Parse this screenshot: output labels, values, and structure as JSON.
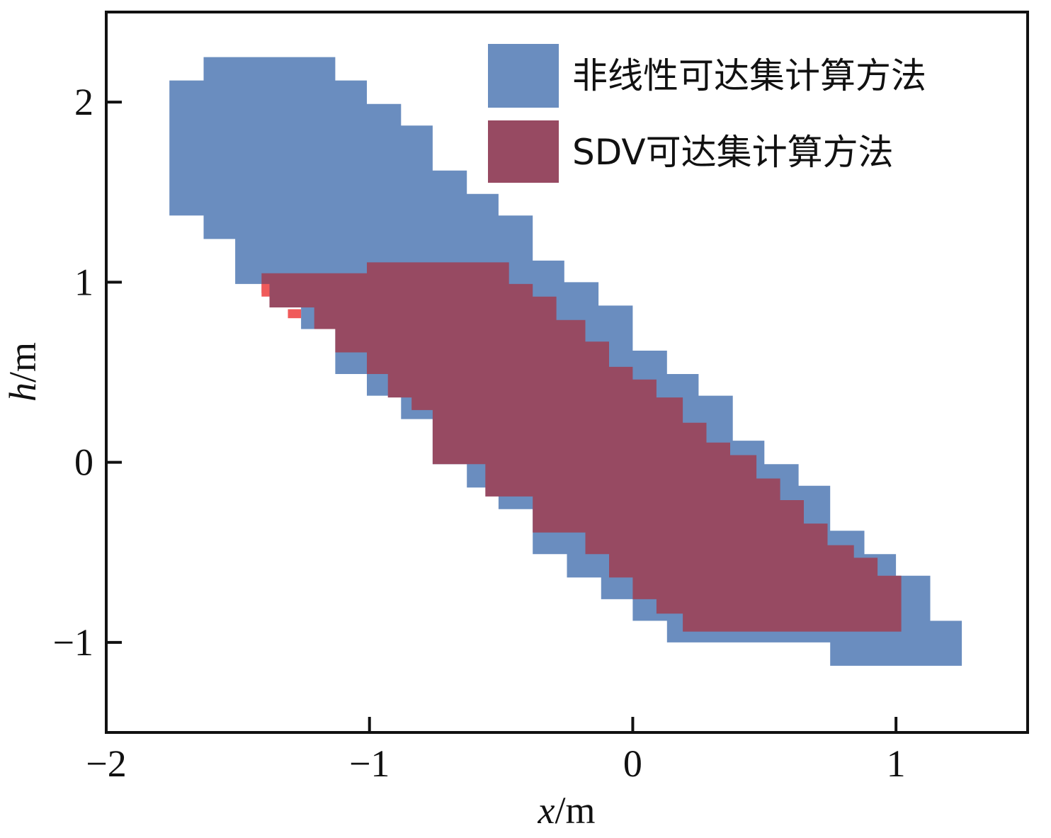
{
  "chart_data": {
    "type": "area",
    "xlabel_var": "x",
    "xlabel_unit": "/m",
    "ylabel_var": "h",
    "ylabel_unit": "/m",
    "xlim": [
      -2,
      1.5
    ],
    "ylim": [
      -1.5,
      2.5
    ],
    "xticks": [
      -2,
      -1,
      0,
      1
    ],
    "xtick_labels": [
      "−2",
      "−1",
      "0",
      "1"
    ],
    "yticks": [
      -1,
      0,
      1,
      2
    ],
    "ytick_labels": [
      "−1",
      "0",
      "1",
      "2"
    ],
    "grid": false,
    "legend_position": "top-right",
    "series": [
      {
        "name": "非线性可达集计算方法",
        "color": "#6a8dbf",
        "polygon": [
          [
            -1.63,
            2.25
          ],
          [
            -1.13,
            2.25
          ],
          [
            -1.13,
            2.12
          ],
          [
            -1.01,
            2.12
          ],
          [
            -1.01,
            1.99
          ],
          [
            -0.88,
            1.99
          ],
          [
            -0.88,
            1.87
          ],
          [
            -0.76,
            1.87
          ],
          [
            -0.76,
            1.62
          ],
          [
            -0.63,
            1.62
          ],
          [
            -0.63,
            1.49
          ],
          [
            -0.51,
            1.49
          ],
          [
            -0.51,
            1.37
          ],
          [
            -0.38,
            1.37
          ],
          [
            -0.38,
            1.12
          ],
          [
            -0.26,
            1.12
          ],
          [
            -0.26,
            1.0
          ],
          [
            -0.13,
            1.0
          ],
          [
            -0.13,
            0.87
          ],
          [
            0.0,
            0.87
          ],
          [
            0.0,
            0.62
          ],
          [
            0.13,
            0.62
          ],
          [
            0.13,
            0.49
          ],
          [
            0.25,
            0.49
          ],
          [
            0.25,
            0.37
          ],
          [
            0.38,
            0.37
          ],
          [
            0.38,
            0.12
          ],
          [
            0.5,
            0.12
          ],
          [
            0.5,
            -0.01
          ],
          [
            0.63,
            -0.01
          ],
          [
            0.63,
            -0.13
          ],
          [
            0.75,
            -0.13
          ],
          [
            0.75,
            -0.38
          ],
          [
            0.88,
            -0.38
          ],
          [
            0.88,
            -0.51
          ],
          [
            1.0,
            -0.51
          ],
          [
            1.0,
            -0.63
          ],
          [
            1.13,
            -0.63
          ],
          [
            1.13,
            -0.88
          ],
          [
            1.25,
            -0.88
          ],
          [
            1.25,
            -1.13
          ],
          [
            0.75,
            -1.13
          ],
          [
            0.75,
            -1.0
          ],
          [
            0.13,
            -1.0
          ],
          [
            0.13,
            -0.88
          ],
          [
            0.0,
            -0.88
          ],
          [
            0.0,
            -0.76
          ],
          [
            -0.12,
            -0.76
          ],
          [
            -0.12,
            -0.64
          ],
          [
            -0.25,
            -0.64
          ],
          [
            -0.25,
            -0.51
          ],
          [
            -0.38,
            -0.51
          ],
          [
            -0.38,
            -0.26
          ],
          [
            -0.51,
            -0.26
          ],
          [
            -0.51,
            -0.14
          ],
          [
            -0.63,
            -0.14
          ],
          [
            -0.63,
            -0.01
          ],
          [
            -0.76,
            -0.01
          ],
          [
            -0.76,
            0.24
          ],
          [
            -0.88,
            0.24
          ],
          [
            -0.88,
            0.37
          ],
          [
            -1.01,
            0.37
          ],
          [
            -1.01,
            0.49
          ],
          [
            -1.13,
            0.49
          ],
          [
            -1.13,
            0.74
          ],
          [
            -1.26,
            0.74
          ],
          [
            -1.26,
            0.87
          ],
          [
            -1.38,
            0.87
          ],
          [
            -1.38,
            0.99
          ],
          [
            -1.51,
            0.99
          ],
          [
            -1.51,
            1.24
          ],
          [
            -1.63,
            1.24
          ],
          [
            -1.63,
            1.37
          ],
          [
            -1.76,
            1.37
          ],
          [
            -1.76,
            2.12
          ],
          [
            -1.63,
            2.12
          ]
        ]
      },
      {
        "name": "SDV可达集计算方法",
        "color": "#974a62",
        "polygon": [
          [
            -1.41,
            1.05
          ],
          [
            -1.01,
            1.05
          ],
          [
            -1.01,
            1.11
          ],
          [
            -0.47,
            1.11
          ],
          [
            -0.47,
            0.99
          ],
          [
            -0.38,
            0.99
          ],
          [
            -0.38,
            0.92
          ],
          [
            -0.29,
            0.92
          ],
          [
            -0.29,
            0.79
          ],
          [
            -0.18,
            0.79
          ],
          [
            -0.18,
            0.67
          ],
          [
            -0.09,
            0.67
          ],
          [
            -0.09,
            0.53
          ],
          [
            0.0,
            0.53
          ],
          [
            0.0,
            0.46
          ],
          [
            0.09,
            0.46
          ],
          [
            0.09,
            0.36
          ],
          [
            0.19,
            0.36
          ],
          [
            0.19,
            0.22
          ],
          [
            0.28,
            0.22
          ],
          [
            0.28,
            0.11
          ],
          [
            0.37,
            0.11
          ],
          [
            0.37,
            0.04
          ],
          [
            0.47,
            0.04
          ],
          [
            0.47,
            -0.09
          ],
          [
            0.56,
            -0.09
          ],
          [
            0.56,
            -0.21
          ],
          [
            0.65,
            -0.21
          ],
          [
            0.65,
            -0.34
          ],
          [
            0.74,
            -0.34
          ],
          [
            0.74,
            -0.46
          ],
          [
            0.84,
            -0.46
          ],
          [
            0.84,
            -0.53
          ],
          [
            0.93,
            -0.53
          ],
          [
            0.93,
            -0.63
          ],
          [
            1.02,
            -0.63
          ],
          [
            1.02,
            -0.94
          ],
          [
            0.19,
            -0.94
          ],
          [
            0.19,
            -0.84
          ],
          [
            0.09,
            -0.84
          ],
          [
            0.09,
            -0.76
          ],
          [
            0.0,
            -0.76
          ],
          [
            0.0,
            -0.64
          ],
          [
            -0.09,
            -0.64
          ],
          [
            -0.09,
            -0.51
          ],
          [
            -0.18,
            -0.51
          ],
          [
            -0.18,
            -0.39
          ],
          [
            -0.38,
            -0.39
          ],
          [
            -0.38,
            -0.19
          ],
          [
            -0.56,
            -0.19
          ],
          [
            -0.56,
            -0.01
          ],
          [
            -0.76,
            -0.01
          ],
          [
            -0.76,
            0.29
          ],
          [
            -0.84,
            0.29
          ],
          [
            -0.84,
            0.36
          ],
          [
            -0.93,
            0.36
          ],
          [
            -0.93,
            0.49
          ],
          [
            -1.01,
            0.49
          ],
          [
            -1.01,
            0.61
          ],
          [
            -1.13,
            0.61
          ],
          [
            -1.13,
            0.74
          ],
          [
            -1.21,
            0.74
          ],
          [
            -1.21,
            0.86
          ],
          [
            -1.38,
            0.86
          ],
          [
            -1.38,
            0.94
          ],
          [
            -1.41,
            0.94
          ]
        ]
      }
    ],
    "highlights": [
      {
        "color": "#f05a5a",
        "rects": [
          [
            -1.41,
            0.92,
            -1.38,
            0.99
          ],
          [
            -1.31,
            0.8,
            -1.26,
            0.85
          ]
        ]
      }
    ]
  }
}
